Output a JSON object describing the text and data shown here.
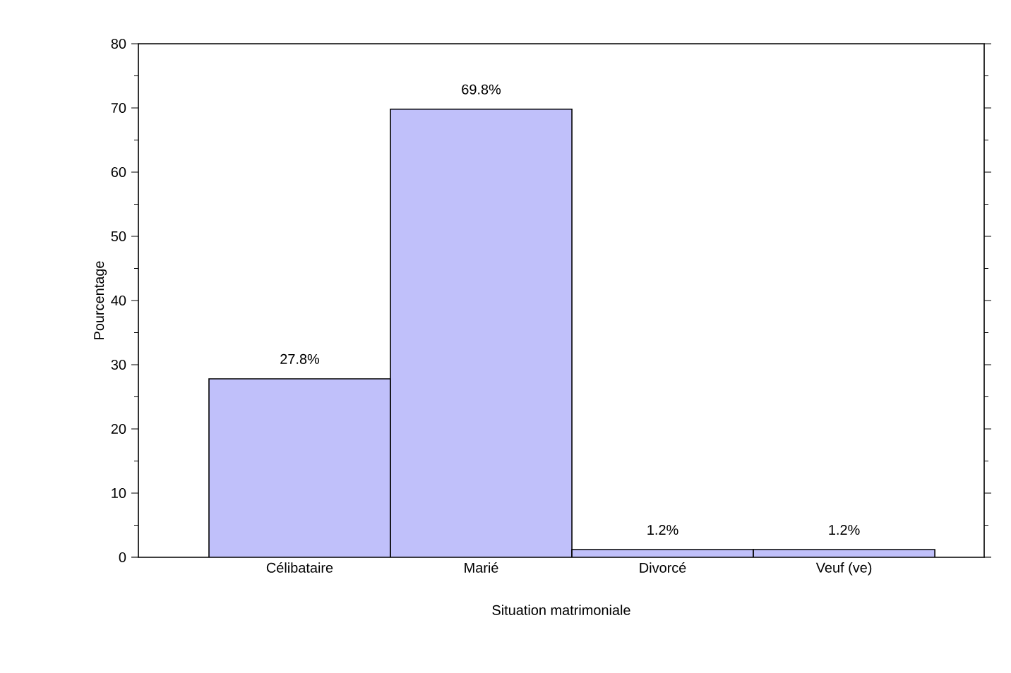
{
  "chart_data": {
    "type": "bar",
    "xlabel": "Situation matrimoniale",
    "ylabel": "Pourcentage",
    "categories": [
      "Célibataire",
      "Marié",
      "Divorcé",
      "Veuf (ve)"
    ],
    "values": [
      27.8,
      69.8,
      1.2,
      1.2
    ],
    "value_labels": [
      "27.8%",
      "69.8%",
      "1.2%",
      "1.2%"
    ],
    "color": "#c0c0fa",
    "ylim": [
      0,
      80
    ],
    "yticks": [
      0,
      10,
      20,
      30,
      40,
      50,
      60,
      70,
      80
    ],
    "grid": false
  }
}
